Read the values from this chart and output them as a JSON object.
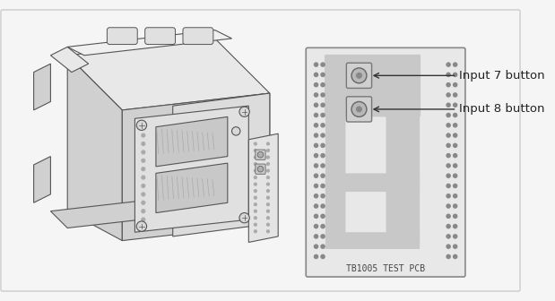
{
  "bg_color": "#f5f5f5",
  "border_color": "#cccccc",
  "line_color": "#555555",
  "pcb_bg": "#e8e8e8",
  "pcb_trace_color": "#c8c8c8",
  "pcb_border": "#888888",
  "label_7": "Input 7 button",
  "label_8": "Input 8 button",
  "pcb_label": "TB1005 TEST PCB",
  "title_fontsize": 9,
  "label_fontsize": 10
}
